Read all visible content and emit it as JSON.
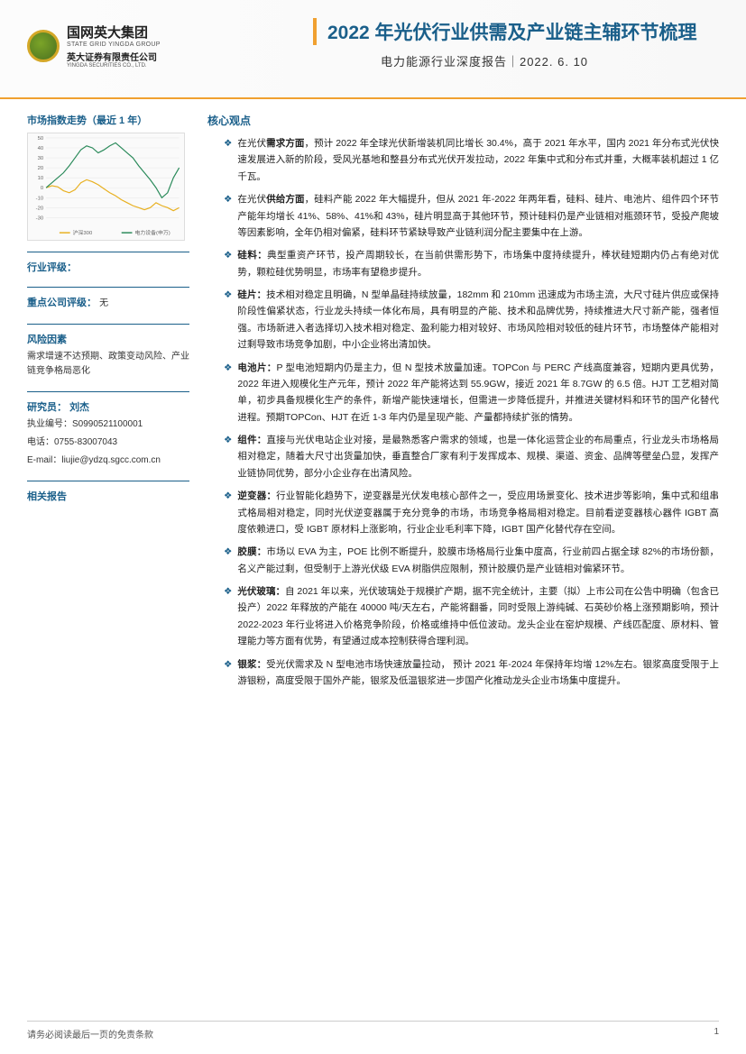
{
  "header": {
    "logo_cn": "国网英大集团",
    "logo_en": "STATE GRID YINGDA GROUP",
    "logo_sub_cn": "英大证券有限责任公司",
    "logo_sub_en": "YINGDA SECURITIES CO., LTD.",
    "main_title": "2022 年光伏行业供需及产业链主辅环节梳理",
    "sub_title": "电力能源行业深度报告｜2022. 6. 10"
  },
  "left": {
    "chart_title": "市场指数走势（最近 1 年）",
    "chart": {
      "type": "line",
      "ylim": [
        -30,
        50
      ],
      "ytick_step": 10,
      "grid_color": "#e8e8e8",
      "background": "#fafafa",
      "series": [
        {
          "name": "沪深300",
          "color": "#e8b020",
          "values": [
            0,
            2,
            1,
            -3,
            -5,
            -2,
            5,
            8,
            6,
            3,
            -1,
            -5,
            -8,
            -12,
            -15,
            -18,
            -20,
            -22,
            -20,
            -15,
            -18,
            -20,
            -23,
            -20
          ]
        },
        {
          "name": "电力设备(申万)",
          "color": "#2a8a5a",
          "values": [
            0,
            5,
            10,
            15,
            22,
            30,
            38,
            42,
            40,
            35,
            38,
            42,
            45,
            40,
            35,
            30,
            22,
            15,
            8,
            0,
            -10,
            -5,
            10,
            20
          ]
        }
      ],
      "legend": [
        "沪深300",
        "电力设备(申万)"
      ],
      "label_fontsize": 6
    },
    "rating_label": "行业评级：",
    "company_rating_label": "重点公司评级：",
    "company_rating_value": "无",
    "risk_label": "风险因素",
    "risk_text": "需求增速不达预期、政策变动风险、产业链竞争格局恶化",
    "analyst_label": "研究员：",
    "analyst_name": "刘杰",
    "cert_label": "执业编号：",
    "cert_value": "S0990521100001",
    "phone_label": "电话：",
    "phone_value": "0755-83007043",
    "email_label": "E-mail：",
    "email_value": "liujie@ydzq.sgcc.com.cn",
    "related_label": "相关报告"
  },
  "core": {
    "title": "核心观点",
    "bullets": [
      {
        "text": "在光伏<b>需求方面</b>，预计 2022 年全球光伏新增装机同比增长 30.4%，高于 2021 年水平，国内 2021 年分布式光伏快速发展进入新的阶段，受风光基地和整县分布式光伏开发拉动，2022 年集中式和分布式并重，大概率装机超过 1 亿千瓦。"
      },
      {
        "text": "在光伏<b>供给方面</b>，硅料产能 2022 年大幅提升，但从 2021 年-2022 年两年看，硅料、硅片、电池片、组件四个环节产能年均增长 41%、58%、41%和 43%，硅片明显高于其他环节，预计硅料仍是产业链相对瓶颈环节，受投产爬坡等因素影响，全年仍相对偏紧，硅料环节紧缺导致产业链利润分配主要集中在上游。"
      },
      {
        "text": "<b>硅料：</b>典型重资产环节，投产周期较长，在当前供需形势下，市场集中度持续提升，棒状硅短期内仍占有绝对优势，颗粒硅优势明显，市场率有望稳步提升。"
      },
      {
        "text": "<b>硅片：</b>技术相对稳定且明确，N 型单晶硅持续放量，182mm 和 210mm 迅速成为市场主流，大尺寸硅片供应或保持阶段性偏紧状态，行业龙头持续一体化布局，具有明显的产能、技术和品牌优势，持续推进大尺寸新产能，强者恒强。市场新进入者选择切入技术相对稳定、盈利能力相对较好、市场风险相对较低的硅片环节，市场整体产能相对过剩导致市场竞争加剧，中小企业将出清加快。"
      },
      {
        "text": "<b>电池片：</b>P 型电池短期内仍是主力，但 N 型技术放量加速。TOPCon 与 PERC 产线高度兼容，短期内更具优势，2022 年进入规模化生产元年，预计 2022 年产能将达到 55.9GW，接近 2021 年 8.7GW 的 6.5 倍。HJT 工艺相对简单，初步具备规模化生产的条件，新增产能快速增长，但需进一步降低提升，并推进关键材料和环节的国产化替代进程。预期TOPCon、HJT 在近 1-3 年内仍是呈现产能、产量都持续扩张的情势。"
      },
      {
        "text": "<b>组件：</b>直接与光伏电站企业对接，是最熟悉客户需求的领域，也是一体化运营企业的布局重点，行业龙头市场格局相对稳定，随着大尺寸出货量加快，垂直整合厂家有利于发挥成本、规模、渠道、资金、品牌等壁垒凸显，发挥产业链协同优势，部分小企业存在出清风险。"
      },
      {
        "text": "<b>逆变器：</b>行业智能化趋势下，逆变器是光伏发电核心部件之一，受应用场景变化、技术进步等影响，集中式和组串式格局相对稳定，同时光伏逆变器属于充分竞争的市场，市场竞争格局相对稳定。目前看逆变器核心器件 IGBT 高度依赖进口，受 IGBT 原材料上涨影响，行业企业毛利率下降，IGBT 国产化替代存在空间。"
      },
      {
        "text": "<b>胶膜：</b>市场以 EVA 为主，POE 比例不断提升，胶膜市场格局行业集中度高，行业前四占据全球 82%的市场份额，名义产能过剩，但受制于上游光伏级 EVA 树脂供应限制，预计胶膜仍是产业链相对偏紧环节。"
      },
      {
        "text": "<b>光伏玻璃：</b>自 2021 年以来，光伏玻璃处于规模扩产期，据不完全统计，主要（拟）上市公司在公告中明确（包含已投产）2022 年释放的产能在 40000 吨/天左右，产能将翻番，同时受限上游纯碱、石英砂价格上涨预期影响，预计 2022-2023 年行业将进入价格竞争阶段，价格或维持中低位波动。龙头企业在窑炉规模、产线匹配度、原材料、管理能力等方面有优势，有望通过成本控制获得合理利润。"
      },
      {
        "text": "<b>银浆：</b>受光伏需求及 N 型电池市场快速放量拉动， 预计 2021 年-2024 年保持年均增 12%左右。银浆高度受限于上游银粉，高度受限于国外产能，银浆及低温银浆进一步国产化推动龙头企业市场集中度提升。"
      }
    ]
  },
  "footer": {
    "disclaimer": "请务必阅读最后一页的免责条款",
    "page": "1"
  }
}
